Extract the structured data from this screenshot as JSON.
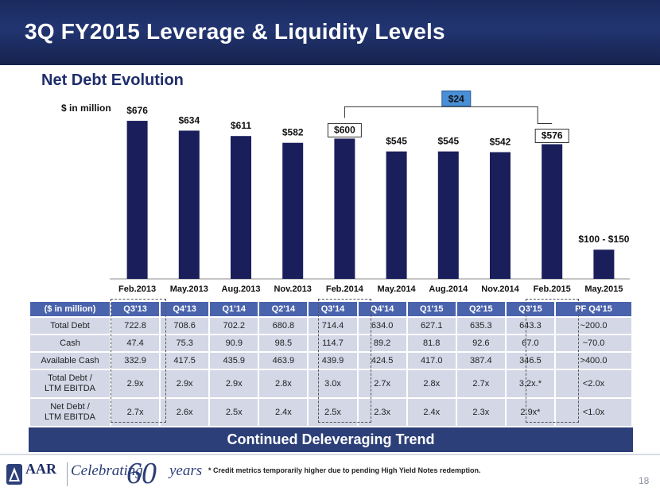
{
  "header": {
    "title": "3Q FY2015 Leverage & Liquidity Levels"
  },
  "subtitle": "Net Debt Evolution",
  "unit_label": "$ in million",
  "chart_data": {
    "type": "bar",
    "title": "Net Debt Evolution",
    "ylabel": "$ in million",
    "categories": [
      "Feb.2013",
      "May.2013",
      "Aug.2013",
      "Nov.2013",
      "Feb.2014",
      "May.2014",
      "Aug.2014",
      "Nov.2014",
      "Feb.2015",
      "May.2015"
    ],
    "values": [
      676,
      634,
      611,
      582,
      600,
      545,
      545,
      542,
      576,
      125
    ],
    "value_labels": [
      "$676",
      "$634",
      "$611",
      "$582",
      "$600",
      "$545",
      "$545",
      "$542",
      "$576",
      "$100 - $150"
    ],
    "boxed_labels": [
      "$600",
      "$576"
    ],
    "bracket_annotation": "$24",
    "ylim": [
      0,
      700
    ],
    "bar_color": "#1a1f5c"
  },
  "table": {
    "headers": [
      "($ in million)",
      "Q3'13",
      "Q4'13",
      "Q1'14",
      "Q2'14",
      "Q3'14",
      "Q4'14",
      "Q1'15",
      "Q2'15",
      "Q3'15",
      "PF Q4'15"
    ],
    "rows": [
      {
        "label": "Total Debt",
        "cells": [
          "722.8",
          "708.6",
          "702.2",
          "680.8",
          "714.4",
          "634.0",
          "627.1",
          "635.3",
          "643.3",
          "~200.0"
        ]
      },
      {
        "label": "Cash",
        "cells": [
          "47.4",
          "75.3",
          "90.9",
          "98.5",
          "114.7",
          "89.2",
          "81.8",
          "92.6",
          "67.0",
          "~70.0"
        ]
      },
      {
        "label": "Available Cash",
        "cells": [
          "332.9",
          "417.5",
          "435.9",
          "463.9",
          "439.9",
          "424.5",
          "417.0",
          "387.4",
          "346.5",
          ">400.0"
        ]
      },
      {
        "label_line1": "Total Debt  /",
        "label_line2": "LTM EBITDA",
        "cells": [
          "2.9x",
          "2.9x",
          "2.9x",
          "2.8x",
          "3.0x",
          "2.7x",
          "2.8x",
          "2.7x",
          "3.2x.*",
          "<2.0x"
        ]
      },
      {
        "label_line1": "Net Debt  /",
        "label_line2": "LTM EBITDA",
        "cells": [
          "2.7x",
          "2.6x",
          "2.5x",
          "2.4x",
          "2.5x",
          "2.3x",
          "2.4x",
          "2.3x",
          "2.9x*",
          "<1.0x"
        ]
      }
    ]
  },
  "banner": "Continued Deleveraging Trend",
  "logo": {
    "brand": "AAR",
    "tagline": "Celebrating",
    "number": "60",
    "suffix": "years"
  },
  "footnote": "* Credit metrics temporarily higher due to pending High Yield Notes redemption.",
  "page_number": "18",
  "colors": {
    "header": "#1f2d6b",
    "table_header": "#4a63ad",
    "table_cell": "#d3d7e6",
    "banner": "#2c3f78",
    "annotation": "#4a8fd6"
  }
}
